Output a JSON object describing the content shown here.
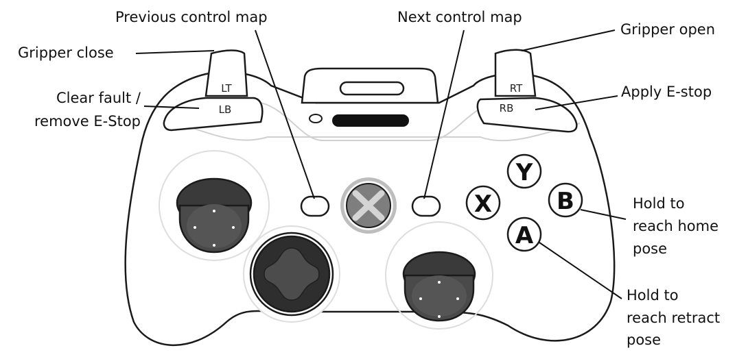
{
  "callouts": {
    "gripper_close": "Gripper close",
    "previous_map": "Previous control map",
    "next_map": "Next control map",
    "gripper_open": "Gripper open",
    "clear_fault_1": "Clear fault /",
    "clear_fault_2": "remove E-Stop",
    "apply_estop": "Apply E-stop",
    "home_1": "Hold to",
    "home_2": "reach home",
    "home_3": "pose",
    "retract_1": "Hold to",
    "retract_2": "reach retract",
    "retract_3": "pose"
  },
  "controller": {
    "lt": "LT",
    "rt": "RT",
    "lb": "LB",
    "rb": "RB",
    "button_y": "Y",
    "button_x": "X",
    "button_b": "B",
    "button_a": "A"
  },
  "icons": {
    "guide": "xbox-guide-icon",
    "dpad": "dpad-icon"
  }
}
